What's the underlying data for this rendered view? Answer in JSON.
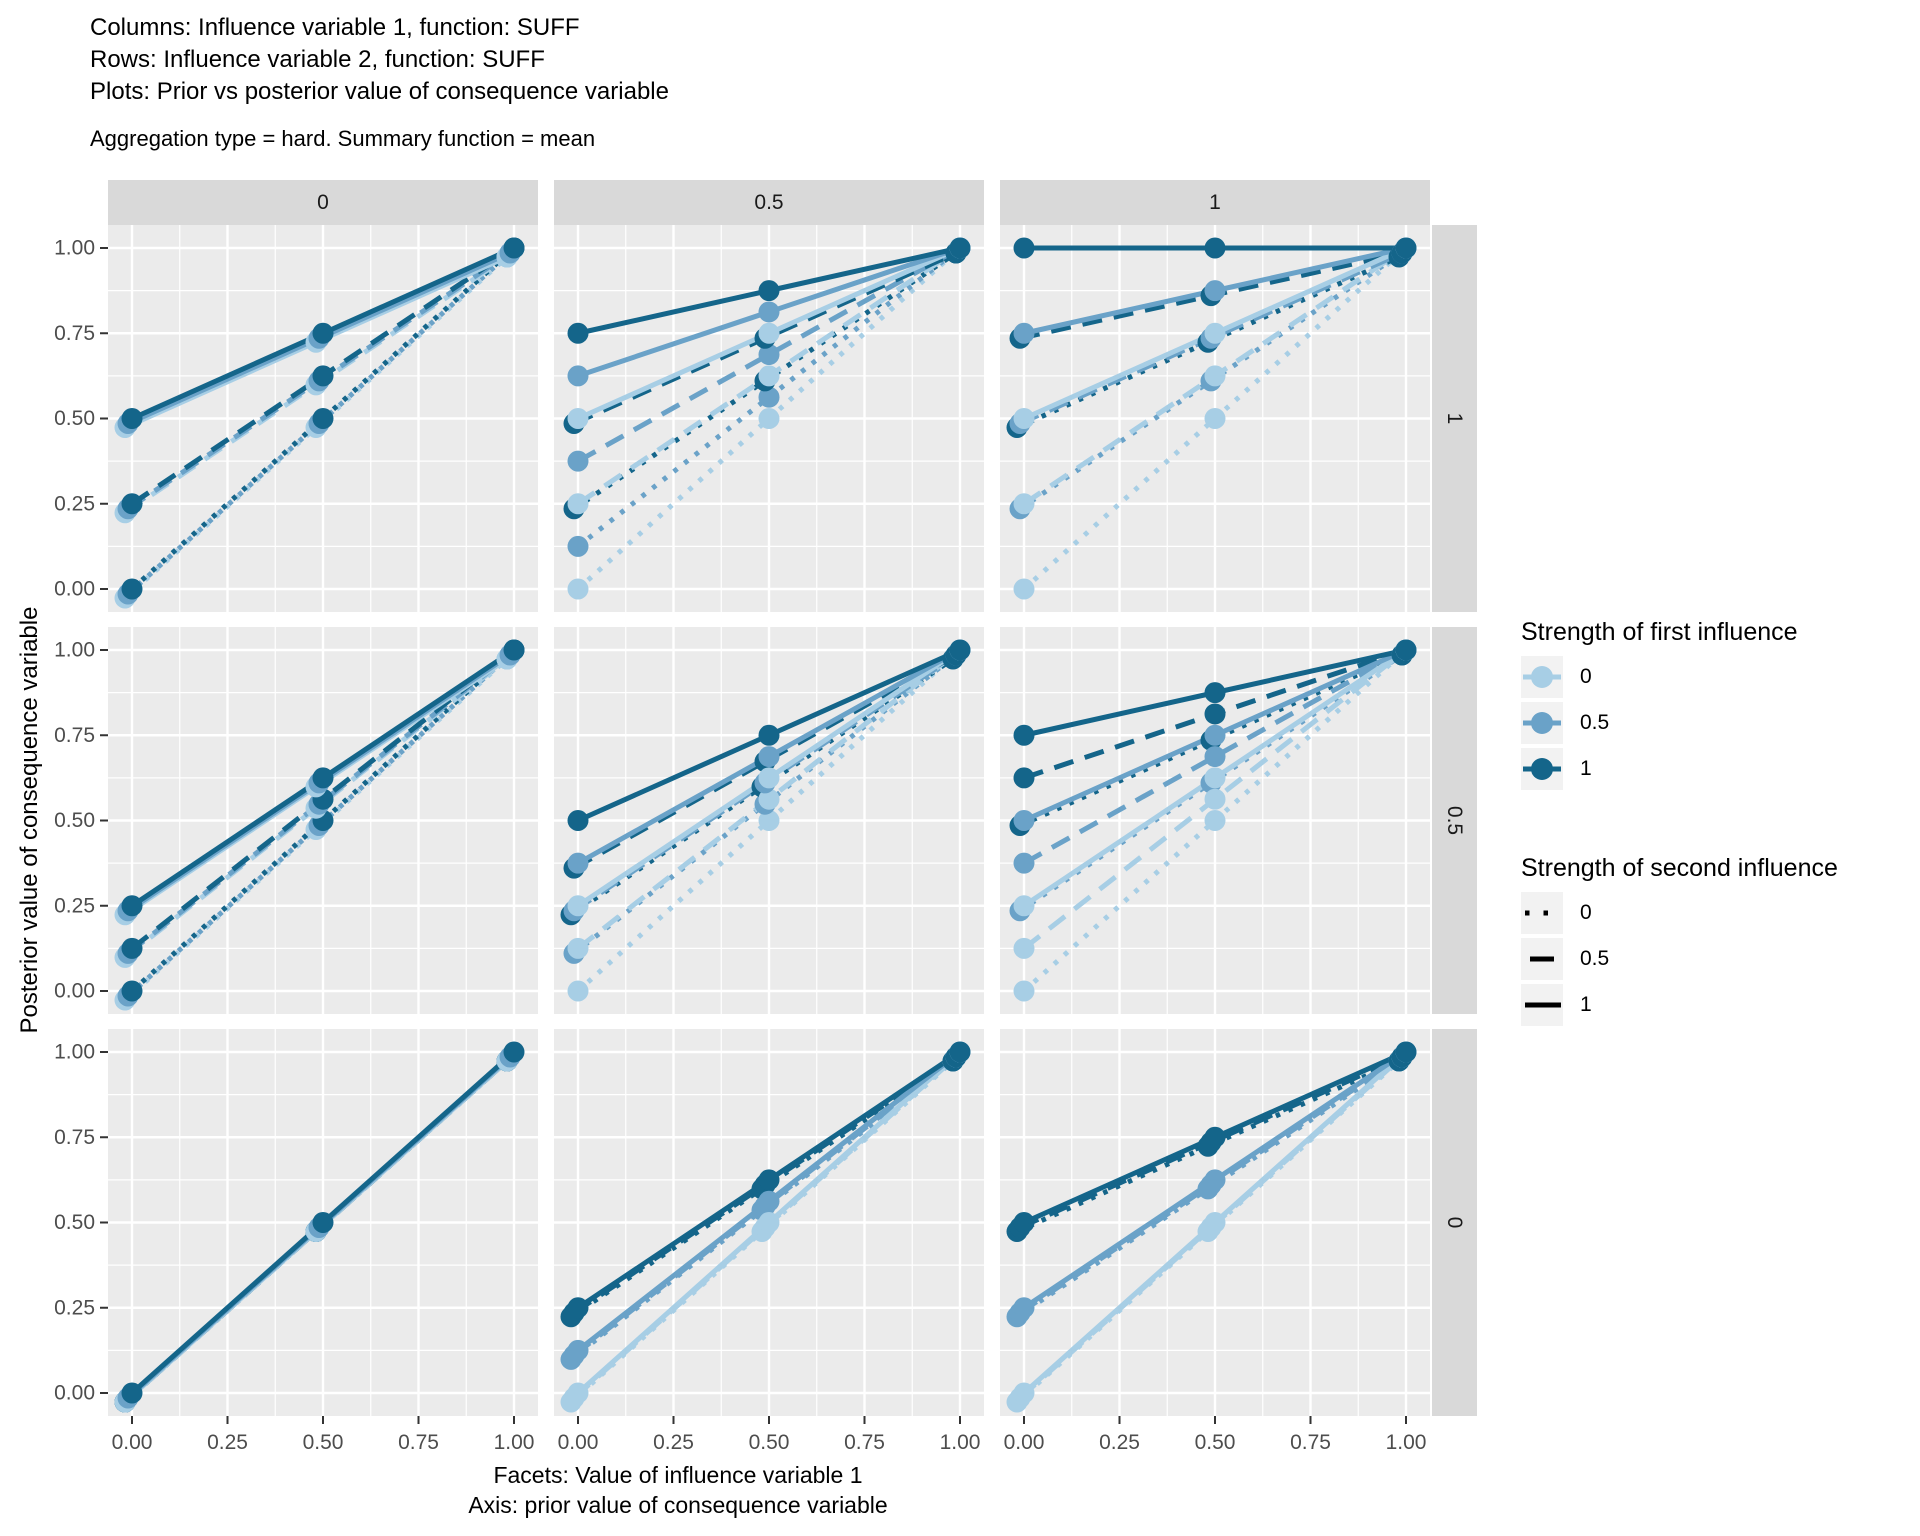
{
  "title_block": {
    "line1": "Columns: Influence variable 1, function: SUFF",
    "line2": "Rows: Influence variable 2, function: SUFF",
    "line3": "Plots: Prior vs posterior value of consequence variable",
    "subtitle": "Aggregation type = hard. Summary function = mean"
  },
  "axes": {
    "y_title": "Posterior value of consequence variable",
    "caption_line1": "Facets: Value of influence variable 1",
    "caption_line2": "Axis: prior value of consequence variable",
    "x_tick_labels": [
      "0.00",
      "0.25",
      "0.50",
      "0.75",
      "1.00"
    ],
    "x_tick_values": [
      0,
      0.25,
      0.5,
      0.75,
      1
    ],
    "y_tick_labels": [
      "1.00",
      "0.75",
      "0.50",
      "0.25",
      "0.00"
    ],
    "y_tick_values": [
      1,
      0.75,
      0.5,
      0.25,
      0
    ]
  },
  "facets": {
    "col_labels": [
      "0",
      "0.5",
      "1"
    ],
    "row_labels": [
      "1",
      "0.5",
      "0"
    ]
  },
  "legends": [
    {
      "title": "Strength of first influence",
      "type": "color",
      "entries": [
        {
          "label": "0",
          "color": "#A7CEE5"
        },
        {
          "label": "0.5",
          "color": "#6AA2C8"
        },
        {
          "label": "1",
          "color": "#14658A"
        }
      ]
    },
    {
      "title": "Strength of second influence",
      "type": "linetype",
      "entries": [
        {
          "label": "0",
          "dash": "dotted"
        },
        {
          "label": "0.5",
          "dash": "dashed"
        },
        {
          "label": "1",
          "dash": "solid"
        }
      ]
    }
  ],
  "style": {
    "panel_bg": "#EBEBEB",
    "strip_bg": "#D9D9D9",
    "legend_key_bg": "#F2F2F2",
    "grid_color": "#FFFFFF",
    "tick_text_color": "#4D4D4D",
    "strip_text_color": "#1A1A1A",
    "tick_mark_color": "#333333",
    "series_colors": {
      "0": "#A7CEE5",
      "0.5": "#6AA2C8",
      "1": "#14658A"
    },
    "linetype_color": "#000000"
  },
  "chart_data": {
    "type": "line",
    "title": "Prior vs posterior value of consequence variable",
    "xlabel": "prior value of consequence variable",
    "ylabel": "Posterior value of consequence variable",
    "xlim": [
      0,
      1
    ],
    "ylim": [
      0,
      1
    ],
    "grid": "on",
    "legend_position": "right",
    "x": [
      0,
      0.5,
      1
    ],
    "color_var": "s1 = strength of first influence",
    "linetype_var": "s2 = strength of second influence",
    "panels": [
      {
        "col": "0",
        "row": "1",
        "series": [
          {
            "s1": "0",
            "s2": "0",
            "y": [
              0,
              0.5,
              1
            ]
          },
          {
            "s1": "0.5",
            "s2": "0",
            "y": [
              0,
              0.5,
              1
            ]
          },
          {
            "s1": "1",
            "s2": "0",
            "y": [
              0,
              0.5,
              1
            ]
          },
          {
            "s1": "0",
            "s2": "0.5",
            "y": [
              0.25,
              0.625,
              1
            ]
          },
          {
            "s1": "0.5",
            "s2": "0.5",
            "y": [
              0.25,
              0.625,
              1
            ]
          },
          {
            "s1": "1",
            "s2": "0.5",
            "y": [
              0.25,
              0.625,
              1
            ]
          },
          {
            "s1": "0",
            "s2": "1",
            "y": [
              0.5,
              0.75,
              1
            ]
          },
          {
            "s1": "0.5",
            "s2": "1",
            "y": [
              0.5,
              0.75,
              1
            ]
          },
          {
            "s1": "1",
            "s2": "1",
            "y": [
              0.5,
              0.75,
              1
            ]
          }
        ]
      },
      {
        "col": "0.5",
        "row": "1",
        "series": [
          {
            "s1": "0",
            "s2": "0",
            "y": [
              0,
              0.5,
              1
            ]
          },
          {
            "s1": "0.5",
            "s2": "0",
            "y": [
              0.125,
              0.5625,
              1
            ]
          },
          {
            "s1": "1",
            "s2": "0",
            "y": [
              0.25,
              0.625,
              1
            ]
          },
          {
            "s1": "0",
            "s2": "0.5",
            "y": [
              0.25,
              0.625,
              1
            ]
          },
          {
            "s1": "0.5",
            "s2": "0.5",
            "y": [
              0.375,
              0.6875,
              1
            ]
          },
          {
            "s1": "1",
            "s2": "0.5",
            "y": [
              0.5,
              0.75,
              1
            ]
          },
          {
            "s1": "0",
            "s2": "1",
            "y": [
              0.5,
              0.75,
              1
            ]
          },
          {
            "s1": "0.5",
            "s2": "1",
            "y": [
              0.625,
              0.8125,
              1
            ]
          },
          {
            "s1": "1",
            "s2": "1",
            "y": [
              0.75,
              0.875,
              1
            ]
          }
        ]
      },
      {
        "col": "1",
        "row": "1",
        "series": [
          {
            "s1": "0",
            "s2": "0",
            "y": [
              0,
              0.5,
              1
            ]
          },
          {
            "s1": "0.5",
            "s2": "0",
            "y": [
              0.25,
              0.625,
              1
            ]
          },
          {
            "s1": "1",
            "s2": "0",
            "y": [
              0.5,
              0.75,
              1
            ]
          },
          {
            "s1": "0",
            "s2": "0.5",
            "y": [
              0.25,
              0.625,
              1
            ]
          },
          {
            "s1": "0.5",
            "s2": "0.5",
            "y": [
              0.5,
              0.75,
              1
            ]
          },
          {
            "s1": "1",
            "s2": "0.5",
            "y": [
              0.75,
              0.875,
              1
            ]
          },
          {
            "s1": "0",
            "s2": "1",
            "y": [
              0.5,
              0.75,
              1
            ]
          },
          {
            "s1": "0.5",
            "s2": "1",
            "y": [
              0.75,
              0.875,
              1
            ]
          },
          {
            "s1": "1",
            "s2": "1",
            "y": [
              1,
              1,
              1
            ]
          }
        ]
      },
      {
        "col": "0",
        "row": "0.5",
        "series": [
          {
            "s1": "0",
            "s2": "0",
            "y": [
              0,
              0.5,
              1
            ]
          },
          {
            "s1": "0.5",
            "s2": "0",
            "y": [
              0,
              0.5,
              1
            ]
          },
          {
            "s1": "1",
            "s2": "0",
            "y": [
              0,
              0.5,
              1
            ]
          },
          {
            "s1": "0",
            "s2": "0.5",
            "y": [
              0.125,
              0.5625,
              1
            ]
          },
          {
            "s1": "0.5",
            "s2": "0.5",
            "y": [
              0.125,
              0.5625,
              1
            ]
          },
          {
            "s1": "1",
            "s2": "0.5",
            "y": [
              0.125,
              0.5625,
              1
            ]
          },
          {
            "s1": "0",
            "s2": "1",
            "y": [
              0.25,
              0.625,
              1
            ]
          },
          {
            "s1": "0.5",
            "s2": "1",
            "y": [
              0.25,
              0.625,
              1
            ]
          },
          {
            "s1": "1",
            "s2": "1",
            "y": [
              0.25,
              0.625,
              1
            ]
          }
        ]
      },
      {
        "col": "0.5",
        "row": "0.5",
        "series": [
          {
            "s1": "0",
            "s2": "0",
            "y": [
              0,
              0.5,
              1
            ]
          },
          {
            "s1": "0.5",
            "s2": "0",
            "y": [
              0.125,
              0.5625,
              1
            ]
          },
          {
            "s1": "1",
            "s2": "0",
            "y": [
              0.25,
              0.625,
              1
            ]
          },
          {
            "s1": "0",
            "s2": "0.5",
            "y": [
              0.125,
              0.5625,
              1
            ]
          },
          {
            "s1": "0.5",
            "s2": "0.5",
            "y": [
              0.25,
              0.625,
              1
            ]
          },
          {
            "s1": "1",
            "s2": "0.5",
            "y": [
              0.375,
              0.6875,
              1
            ]
          },
          {
            "s1": "0",
            "s2": "1",
            "y": [
              0.25,
              0.625,
              1
            ]
          },
          {
            "s1": "0.5",
            "s2": "1",
            "y": [
              0.375,
              0.6875,
              1
            ]
          },
          {
            "s1": "1",
            "s2": "1",
            "y": [
              0.5,
              0.75,
              1
            ]
          }
        ]
      },
      {
        "col": "1",
        "row": "0.5",
        "series": [
          {
            "s1": "0",
            "s2": "0",
            "y": [
              0,
              0.5,
              1
            ]
          },
          {
            "s1": "0.5",
            "s2": "0",
            "y": [
              0.25,
              0.625,
              1
            ]
          },
          {
            "s1": "1",
            "s2": "0",
            "y": [
              0.5,
              0.75,
              1
            ]
          },
          {
            "s1": "0",
            "s2": "0.5",
            "y": [
              0.125,
              0.5625,
              1
            ]
          },
          {
            "s1": "0.5",
            "s2": "0.5",
            "y": [
              0.375,
              0.6875,
              1
            ]
          },
          {
            "s1": "1",
            "s2": "0.5",
            "y": [
              0.625,
              0.8125,
              1
            ]
          },
          {
            "s1": "0",
            "s2": "1",
            "y": [
              0.25,
              0.625,
              1
            ]
          },
          {
            "s1": "0.5",
            "s2": "1",
            "y": [
              0.5,
              0.75,
              1
            ]
          },
          {
            "s1": "1",
            "s2": "1",
            "y": [
              0.75,
              0.875,
              1
            ]
          }
        ]
      },
      {
        "col": "0",
        "row": "0",
        "series": [
          {
            "s1": "0",
            "s2": "0",
            "y": [
              0,
              0.5,
              1
            ]
          },
          {
            "s1": "0.5",
            "s2": "0",
            "y": [
              0,
              0.5,
              1
            ]
          },
          {
            "s1": "1",
            "s2": "0",
            "y": [
              0,
              0.5,
              1
            ]
          },
          {
            "s1": "0",
            "s2": "0.5",
            "y": [
              0,
              0.5,
              1
            ]
          },
          {
            "s1": "0.5",
            "s2": "0.5",
            "y": [
              0,
              0.5,
              1
            ]
          },
          {
            "s1": "1",
            "s2": "0.5",
            "y": [
              0,
              0.5,
              1
            ]
          },
          {
            "s1": "0",
            "s2": "1",
            "y": [
              0,
              0.5,
              1
            ]
          },
          {
            "s1": "0.5",
            "s2": "1",
            "y": [
              0,
              0.5,
              1
            ]
          },
          {
            "s1": "1",
            "s2": "1",
            "y": [
              0,
              0.5,
              1
            ]
          }
        ]
      },
      {
        "col": "0.5",
        "row": "0",
        "series": [
          {
            "s1": "0",
            "s2": "0",
            "y": [
              0,
              0.5,
              1
            ]
          },
          {
            "s1": "0.5",
            "s2": "0",
            "y": [
              0.125,
              0.5625,
              1
            ]
          },
          {
            "s1": "1",
            "s2": "0",
            "y": [
              0.25,
              0.625,
              1
            ]
          },
          {
            "s1": "0",
            "s2": "0.5",
            "y": [
              0,
              0.5,
              1
            ]
          },
          {
            "s1": "0.5",
            "s2": "0.5",
            "y": [
              0.125,
              0.5625,
              1
            ]
          },
          {
            "s1": "1",
            "s2": "0.5",
            "y": [
              0.25,
              0.625,
              1
            ]
          },
          {
            "s1": "0",
            "s2": "1",
            "y": [
              0,
              0.5,
              1
            ]
          },
          {
            "s1": "0.5",
            "s2": "1",
            "y": [
              0.125,
              0.5625,
              1
            ]
          },
          {
            "s1": "1",
            "s2": "1",
            "y": [
              0.25,
              0.625,
              1
            ]
          }
        ]
      },
      {
        "col": "1",
        "row": "0",
        "series": [
          {
            "s1": "0",
            "s2": "0",
            "y": [
              0,
              0.5,
              1
            ]
          },
          {
            "s1": "0.5",
            "s2": "0",
            "y": [
              0.25,
              0.625,
              1
            ]
          },
          {
            "s1": "1",
            "s2": "0",
            "y": [
              0.5,
              0.75,
              1
            ]
          },
          {
            "s1": "0",
            "s2": "0.5",
            "y": [
              0,
              0.5,
              1
            ]
          },
          {
            "s1": "0.5",
            "s2": "0.5",
            "y": [
              0.25,
              0.625,
              1
            ]
          },
          {
            "s1": "1",
            "s2": "0.5",
            "y": [
              0.5,
              0.75,
              1
            ]
          },
          {
            "s1": "0",
            "s2": "1",
            "y": [
              0,
              0.5,
              1
            ]
          },
          {
            "s1": "0.5",
            "s2": "1",
            "y": [
              0.25,
              0.625,
              1
            ]
          },
          {
            "s1": "1",
            "s2": "1",
            "y": [
              0.5,
              0.75,
              1
            ]
          }
        ]
      }
    ]
  }
}
